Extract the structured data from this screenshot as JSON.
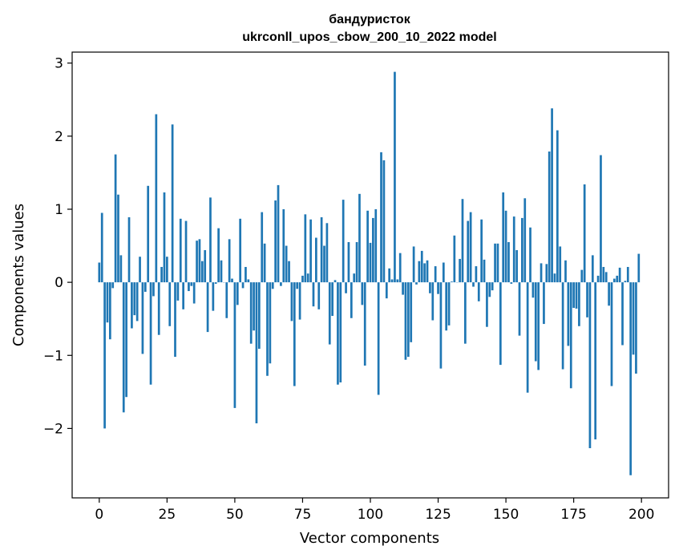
{
  "chart_data": {
    "type": "bar",
    "title": [
      "бандуристок",
      "ukrconll_upos_cbow_200_10_2022 model"
    ],
    "xlabel": "Vector components",
    "ylabel": "Components values",
    "xlim": [
      -10,
      210
    ],
    "ylim": [
      -2.95,
      3.15
    ],
    "xticks": [
      0,
      25,
      50,
      75,
      100,
      125,
      150,
      175,
      200
    ],
    "yticks": [
      -2,
      -1,
      0,
      1,
      2,
      3
    ],
    "bar_color": "#1f77b4",
    "values": [
      0.27,
      0.95,
      -2.0,
      -0.55,
      -0.78,
      -0.08,
      1.75,
      1.2,
      0.37,
      -1.78,
      -1.57,
      0.89,
      -0.63,
      -0.45,
      -0.53,
      0.35,
      -0.98,
      -0.13,
      1.32,
      -1.4,
      -0.19,
      2.3,
      -0.72,
      0.21,
      1.23,
      0.35,
      -0.6,
      2.16,
      -1.02,
      -0.25,
      0.87,
      -0.37,
      0.84,
      -0.12,
      -0.05,
      -0.29,
      0.57,
      0.59,
      0.29,
      0.44,
      -0.68,
      1.16,
      -0.39,
      -0.02,
      0.74,
      0.3,
      0.0,
      -0.49,
      0.59,
      0.05,
      -1.72,
      -0.31,
      0.87,
      -0.08,
      0.21,
      0.04,
      -0.84,
      -0.66,
      -1.93,
      -0.91,
      0.96,
      0.53,
      -1.28,
      -1.11,
      -0.09,
      1.12,
      1.33,
      -0.05,
      1.0,
      0.5,
      0.29,
      -0.53,
      -1.42,
      -0.09,
      -0.51,
      0.09,
      0.93,
      0.12,
      0.86,
      -0.33,
      0.61,
      -0.37,
      0.89,
      0.5,
      0.81,
      -0.85,
      -0.46,
      0.03,
      -1.4,
      -1.37,
      1.13,
      -0.15,
      0.55,
      -0.49,
      0.12,
      0.55,
      1.21,
      -0.31,
      -1.14,
      0.98,
      0.54,
      0.88,
      1.0,
      -1.54,
      1.78,
      1.67,
      -0.22,
      0.19,
      0.04,
      2.88,
      0.04,
      0.4,
      -0.17,
      -1.06,
      -1.02,
      -0.82,
      0.49,
      -0.03,
      0.29,
      0.43,
      0.26,
      0.3,
      -0.15,
      -0.52,
      0.22,
      -0.16,
      -1.18,
      0.27,
      -0.66,
      -0.59,
      0.01,
      0.64,
      0.0,
      0.32,
      1.14,
      -0.84,
      0.84,
      0.96,
      -0.06,
      0.22,
      -0.26,
      0.86,
      0.31,
      -0.61,
      -0.2,
      -0.11,
      0.53,
      0.53,
      -1.13,
      1.23,
      0.98,
      0.55,
      -0.02,
      0.9,
      0.44,
      -0.73,
      0.88,
      1.15,
      -1.51,
      0.75,
      -0.21,
      -1.08,
      -1.2,
      0.26,
      -0.57,
      0.25,
      1.79,
      2.38,
      0.12,
      2.08,
      0.49,
      -1.19,
      0.3,
      -0.87,
      -1.45,
      -0.35,
      -0.36,
      -0.6,
      0.17,
      1.34,
      -0.48,
      -2.27,
      0.37,
      -2.15,
      0.09,
      1.74,
      0.21,
      0.14,
      -0.32,
      -1.42,
      0.05,
      0.09,
      0.2,
      -0.86,
      0.02,
      0.21,
      -2.64,
      -0.99,
      -1.25,
      0.39
    ]
  }
}
